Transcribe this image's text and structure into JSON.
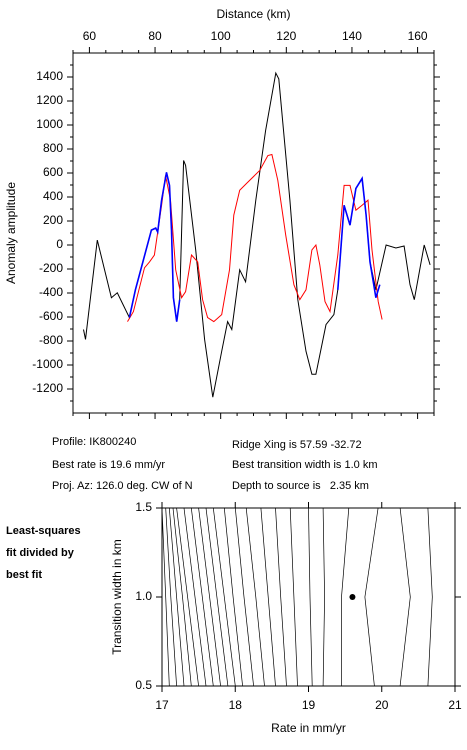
{
  "chart_data": [
    {
      "type": "line",
      "xlabel": "Distance (km)",
      "ylabel": "Anomaly amplitude",
      "xlim": [
        55,
        165
      ],
      "xticks": [
        60,
        80,
        100,
        120,
        140,
        160
      ],
      "xminorticks": [
        55,
        65,
        70,
        75,
        85,
        90,
        95,
        105,
        110,
        115,
        125,
        130,
        135,
        145,
        150,
        155,
        165
      ],
      "ylim": [
        -1400,
        1600
      ],
      "yticks": [
        -1200,
        -1000,
        -800,
        -600,
        -400,
        -200,
        0,
        200,
        400,
        600,
        800,
        1000,
        1200,
        1400
      ],
      "yminorticks": [
        -1300,
        -1100,
        -900,
        -700,
        -500,
        -300,
        -100,
        100,
        300,
        500,
        700,
        900,
        1100,
        1300,
        1500
      ],
      "series": [
        {
          "color": "#000000",
          "x": [
            58.2,
            58.8,
            62.4,
            66.7,
            68.5,
            69.8,
            72.2,
            74,
            78.9,
            80.2,
            80.8,
            82,
            83.5,
            84.4,
            85,
            85.6,
            86.6,
            87.5,
            88.7,
            89.3,
            92.4,
            95.1,
            97.6,
            100.3,
            102.1,
            103.4,
            105.8,
            107.6,
            110.7,
            113.7,
            116.8,
            117.7,
            121.1,
            123.5,
            126,
            127.8,
            129,
            132.1,
            134.5,
            135.7,
            137.6,
            139.4,
            141.2,
            143.1,
            144.3,
            145.5,
            147.3,
            150.4,
            153.4,
            155.9,
            157.7,
            159,
            162,
            163.8
          ],
          "values": [
            -704,
            -787,
            41,
            -439,
            -398,
            -472,
            -605,
            -373,
            124,
            141,
            108,
            373,
            605,
            497,
            124,
            -439,
            -638,
            -456,
            704,
            663,
            -41,
            -787,
            -1268,
            -886,
            -638,
            -704,
            -207,
            -307,
            373,
            953,
            1433,
            1384,
            373,
            -456,
            -886,
            -1077,
            -1077,
            -663,
            -580,
            -373,
            331,
            166,
            472,
            555,
            249,
            -141,
            -373,
            0,
            -25,
            -8,
            -331,
            -456,
            0,
            -166
          ]
        },
        {
          "color": "#ff0000",
          "x": [
            71.6,
            73.4,
            76.8,
            78.3,
            79.8,
            82,
            83.2,
            84.7,
            86.3,
            88.1,
            89.3,
            91.1,
            93,
            94.5,
            96,
            97.9,
            100.3,
            102.7,
            104,
            105.8,
            108.2,
            111.9,
            114.4,
            115.6,
            117.4,
            119.8,
            122.3,
            124.1,
            126,
            127.8,
            129,
            130.2,
            131.8,
            133.3,
            135.7,
            137.6,
            139.4,
            141.2,
            143.1,
            144.9,
            146.1,
            148,
            149.2
          ],
          "values": [
            -638,
            -555,
            -190,
            -141,
            -83,
            331,
            580,
            373,
            -207,
            -439,
            -389,
            -83,
            -141,
            -456,
            -605,
            -638,
            -580,
            -207,
            249,
            456,
            522,
            621,
            746,
            754,
            539,
            83,
            -331,
            -456,
            -373,
            -41,
            0,
            -166,
            -472,
            -555,
            -83,
            497,
            497,
            290,
            331,
            373,
            -41,
            -472,
            -621
          ]
        },
        {
          "color": "#0000ff",
          "x": [
            72.2,
            74,
            78.9,
            80.2,
            80.8,
            82,
            83.5,
            84.4,
            85,
            85.6,
            86.6,
            87.5,
            null,
            135.7,
            137.6,
            139.4,
            141.2,
            143.1,
            144.3,
            145.5,
            147.3,
            148.5
          ],
          "values": [
            -605,
            -373,
            124,
            141,
            108,
            373,
            605,
            497,
            124,
            -439,
            -638,
            -456,
            null,
            -373,
            331,
            166,
            472,
            555,
            249,
            -141,
            -439,
            -331
          ]
        }
      ]
    },
    {
      "type": "contour",
      "xlabel": "Rate in mm/yr",
      "ylabel": "Transition width in km",
      "xlim": [
        17,
        21
      ],
      "xticks": [
        17,
        18,
        19,
        20,
        21
      ],
      "ylim": [
        0.5,
        1.5
      ],
      "yticks": [
        0.5,
        {
          "value": 1,
          "label": "1.0"
        },
        1.5
      ],
      "contour_y": [
        0.5,
        1.0,
        1.5
      ],
      "contours": [
        {
          "x": [
            17.1,
            17.05,
            17.0
          ]
        },
        {
          "x": [
            17.2,
            17.12,
            17.05
          ]
        },
        {
          "x": [
            17.3,
            17.2,
            17.1
          ]
        },
        {
          "x": [
            17.4,
            17.28,
            17.15
          ]
        },
        {
          "x": [
            17.5,
            17.35,
            17.2
          ]
        },
        {
          "x": [
            17.6,
            17.45,
            17.3
          ]
        },
        {
          "x": [
            17.7,
            17.55,
            17.4
          ]
        },
        {
          "x": [
            17.8,
            17.65,
            17.5
          ]
        },
        {
          "x": [
            17.9,
            17.75,
            17.6
          ]
        },
        {
          "x": [
            18.0,
            17.85,
            17.7
          ]
        },
        {
          "x": [
            18.1,
            17.97,
            17.85
          ]
        },
        {
          "x": [
            18.25,
            18.12,
            18.0
          ]
        },
        {
          "x": [
            18.4,
            18.28,
            18.15
          ]
        },
        {
          "x": [
            18.55,
            18.45,
            18.35
          ]
        },
        {
          "x": [
            18.7,
            18.62,
            18.55
          ]
        },
        {
          "x": [
            18.85,
            18.8,
            18.75
          ]
        },
        {
          "x": [
            19.05,
            19.02,
            19.0
          ]
        },
        {
          "x": [
            19.2,
            19.22,
            19.2
          ]
        },
        {
          "x": [
            19.45,
            19.45,
            19.55
          ]
        },
        {
          "x": [
            19.9,
            19.77,
            19.95
          ]
        },
        {
          "x": [
            20.25,
            20.39,
            20.25
          ]
        },
        {
          "x": [
            20.63,
            20.69,
            20.63
          ]
        }
      ],
      "best_fit": {
        "x": 19.6,
        "y": 1.0
      }
    }
  ],
  "info": {
    "profile": "Profile: IK800240",
    "best_rate": "Best rate is 19.6 mm/yr",
    "proj_az": "Proj. Az: 126.0 deg. CW of N",
    "ridge_xing": "Ridge Xing is 57.59 -32.72",
    "best_width": "Best transition width is 1.0 km",
    "depth": "Depth to source is   2.35 km"
  },
  "side_label": [
    "Least-squares",
    "fit divided by",
    "best fit"
  ]
}
